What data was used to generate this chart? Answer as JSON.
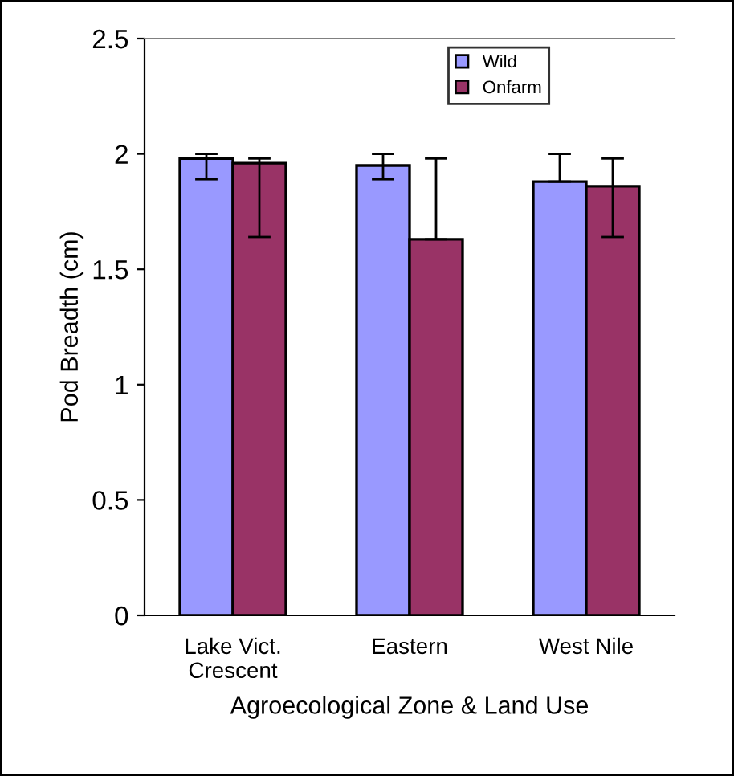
{
  "chart_data": {
    "type": "bar",
    "xlabel": "Agroecological Zone & Land Use",
    "ylabel": "Pod Breadth (cm)",
    "categories": [
      "Lake Vict.\nCrescent",
      "Eastern",
      "West Nile"
    ],
    "series": [
      {
        "name": "Wild",
        "color": "#9999ff",
        "values": [
          1.98,
          1.95,
          1.88
        ],
        "errors": [
          [
            1.89,
            2.0
          ],
          [
            1.89,
            2.0
          ],
          [
            1.88,
            2.0
          ]
        ]
      },
      {
        "name": "Onfarm",
        "color": "#993366",
        "values": [
          1.96,
          1.63,
          1.86
        ],
        "errors": [
          [
            1.64,
            1.98
          ],
          [
            1.63,
            1.98
          ],
          [
            1.64,
            1.98
          ]
        ]
      }
    ],
    "ylim": [
      0,
      2.5
    ],
    "yticks": [
      0,
      0.5,
      1,
      1.5,
      2,
      2.5
    ],
    "grid": false,
    "legend": "top right"
  }
}
